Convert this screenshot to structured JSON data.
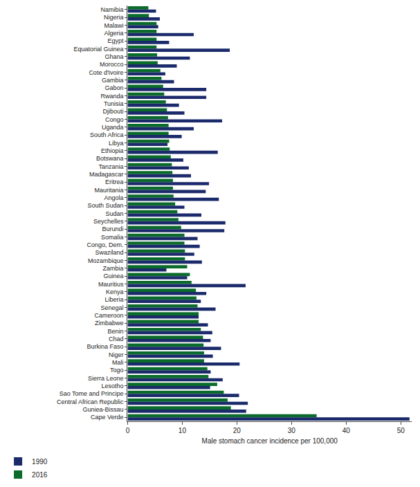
{
  "chart_data": {
    "type": "bar",
    "orientation": "horizontal",
    "x_label": "Male stomach cancer incidence per 100,000",
    "categories": [
      "Namibia",
      "Nigeria",
      "Malawi",
      "Algeria",
      "Egypt",
      "Equatorial Guinea",
      "Ghana",
      "Morocco",
      "Cote d'Ivoire",
      "Gambia",
      "Gabon",
      "Rwanda",
      "Tunisia",
      "Djibouti",
      "Congo",
      "Uganda",
      "South Africa",
      "Libya",
      "Ethiopia",
      "Botswana",
      "Tanzania",
      "Madagascar",
      "Eritrea",
      "Mauritania",
      "Angola",
      "South Sudan",
      "Sudan",
      "Seychelles",
      "Burundi",
      "Somalia",
      "Congo, Dem.",
      "Swaziland",
      "Mozambique",
      "Zambia",
      "Guinea",
      "Mauritius",
      "Kenya",
      "Liberia",
      "Senegal",
      "Cameroon",
      "Zimbabwe",
      "Benin",
      "Chad",
      "Burkina Faso",
      "Niger",
      "Mali",
      "Togo",
      "Sierra Leone",
      "Lesotho",
      "Sao Tome and Principe",
      "Central African Republic",
      "Guniea-Bissau",
      "Cape Verde"
    ],
    "series": [
      {
        "name": "1990",
        "color": "#1b2a6b",
        "values": [
          5.2,
          5.9,
          5.6,
          12.1,
          7.6,
          18.7,
          11.4,
          9.0,
          6.9,
          8.5,
          14.4,
          14.4,
          9.4,
          10.4,
          17.3,
          12.1,
          9.9,
          7.3,
          16.5,
          10.2,
          11.2,
          11.6,
          14.9,
          14.3,
          16.7,
          10.4,
          13.5,
          17.9,
          17.7,
          12.8,
          13.2,
          12.2,
          13.6,
          7.1,
          10.9,
          21.6,
          14.4,
          13.4,
          16.1,
          13.0,
          14.7,
          15.5,
          15.2,
          17.1,
          15.6,
          20.5,
          15.2,
          17.4,
          15.1,
          20.4,
          22.0,
          21.7,
          51.6
        ]
      },
      {
        "name": "2016",
        "color": "#0b6b2b",
        "values": [
          3.8,
          3.9,
          5.3,
          5.3,
          5.3,
          5.3,
          5.4,
          5.5,
          6.0,
          6.2,
          6.5,
          6.7,
          7.0,
          7.2,
          7.4,
          7.5,
          7.5,
          7.6,
          7.7,
          7.9,
          8.1,
          8.2,
          8.3,
          8.3,
          8.4,
          8.7,
          9.1,
          9.3,
          9.8,
          10.4,
          10.4,
          10.5,
          10.5,
          10.9,
          11.4,
          11.7,
          12.5,
          12.6,
          12.8,
          13.0,
          13.0,
          13.4,
          13.8,
          13.9,
          14.0,
          14.0,
          14.6,
          14.8,
          16.4,
          17.6,
          18.3,
          18.9,
          34.6
        ]
      }
    ],
    "xlim": [
      0,
      52
    ],
    "xticks": [
      0,
      10,
      20,
      30,
      40,
      50
    ],
    "grid": false,
    "legend": "bottom left"
  }
}
